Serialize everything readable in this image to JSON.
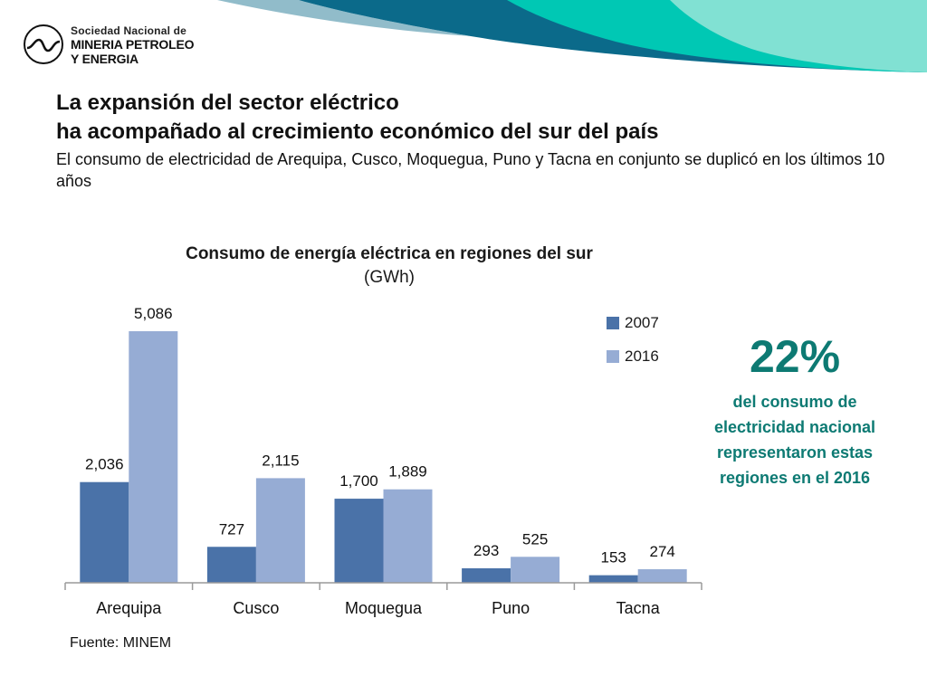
{
  "logo": {
    "line1": "Sociedad Nacional de",
    "line2": "MINERIA PETROLEO",
    "line3": "Y ENERGIA"
  },
  "headline": {
    "line1": "La expansión del sector eléctrico",
    "line2": "ha acompañado al crecimiento económico del sur del país",
    "subtitle": "El consumo de electricidad de Arequipa, Cusco, Moquegua, Puno y Tacna en conjunto se duplicó en los últimos 10 años"
  },
  "stat": {
    "value": "22%",
    "text": "del consumo de electricidad nacional representaron estas regiones en el 2016"
  },
  "source": "Fuente: MINEM",
  "colors": {
    "series_2007": "#4a72a8",
    "series_2016": "#96acd4",
    "accent": "#0d7a73",
    "banner_teal": "#00c8b4",
    "banner_dark": "#0b6a8a"
  },
  "chart_data": {
    "type": "bar",
    "title": "Consumo de energía eléctrica en regiones del sur",
    "subtitle": "(GWh)",
    "categories": [
      "Arequipa",
      "Cusco",
      "Moquegua",
      "Puno",
      "Tacna"
    ],
    "series": [
      {
        "name": "2007",
        "values": [
          2036,
          727,
          1700,
          293,
          153
        ],
        "labels": [
          "2,036",
          "727",
          "1,700",
          "293",
          "153"
        ]
      },
      {
        "name": "2016",
        "values": [
          5086,
          2115,
          1889,
          525,
          274
        ],
        "labels": [
          "5,086",
          "2,115",
          "1,889",
          "525",
          "274"
        ]
      }
    ],
    "ylim": [
      0,
      5086
    ],
    "grid": false,
    "legend": "right"
  }
}
